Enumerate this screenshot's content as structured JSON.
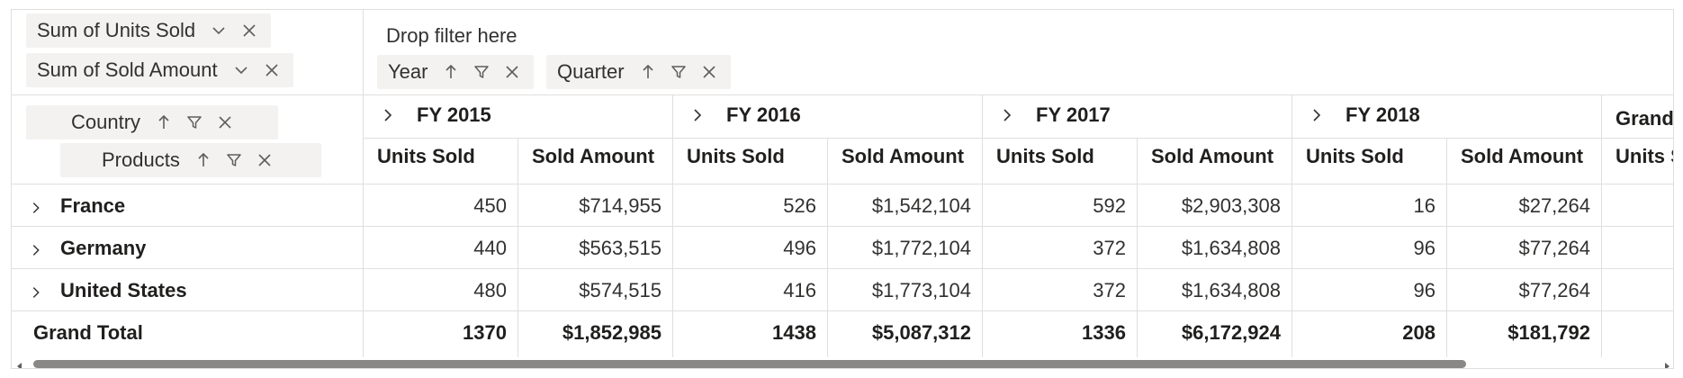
{
  "values_area": {
    "chips": [
      {
        "label": "Sum of Units Sold"
      },
      {
        "label": "Sum of Sold Amount"
      }
    ]
  },
  "filter_area": {
    "placeholder": "Drop filter here"
  },
  "column_area": {
    "chips": [
      {
        "label": "Year"
      },
      {
        "label": "Quarter"
      }
    ]
  },
  "row_area": {
    "chips": [
      {
        "label": "Country"
      },
      {
        "label": "Products"
      }
    ]
  },
  "grid": {
    "years": [
      "FY 2015",
      "FY 2016",
      "FY 2017",
      "FY 2018"
    ],
    "grand_header": "Grand",
    "col_units": "Units Sold",
    "col_amount": "Sold Amount",
    "grand_units_partial": "Units S",
    "rows": [
      {
        "label": "France",
        "cells": [
          "450",
          "$714,955",
          "526",
          "$1,542,104",
          "592",
          "$2,903,308",
          "16",
          "$27,264"
        ]
      },
      {
        "label": "Germany",
        "cells": [
          "440",
          "$563,515",
          "496",
          "$1,772,104",
          "372",
          "$1,634,808",
          "96",
          "$77,264"
        ]
      },
      {
        "label": "United States",
        "cells": [
          "480",
          "$574,515",
          "416",
          "$1,773,104",
          "372",
          "$1,634,808",
          "96",
          "$77,264"
        ]
      }
    ],
    "grand_total": {
      "label": "Grand Total",
      "cells": [
        "1370",
        "$1,852,985",
        "1438",
        "$5,087,312",
        "1336",
        "$6,172,924",
        "208",
        "$181,792"
      ]
    }
  },
  "scrollbar": {
    "position": 0.0
  }
}
